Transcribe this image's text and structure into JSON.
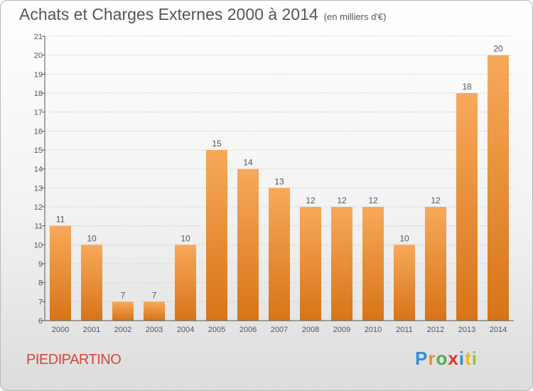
{
  "title": "Achats et Charges Externes 2000 à 2014",
  "unit": "(en milliers d'€)",
  "town": "PIEDIPARTINO",
  "logo": [
    "P",
    "r",
    "o",
    "x",
    "i",
    "t",
    "i"
  ],
  "colors": {
    "bar_light": "#f7a95a",
    "bar_dark": "#d77418",
    "axis": "#555555",
    "grid": "#cfcfcf",
    "title": "#555555",
    "town": "#d5473a"
  },
  "chart_data": {
    "type": "bar",
    "categories": [
      "2000",
      "2001",
      "2002",
      "2003",
      "2004",
      "2005",
      "2006",
      "2007",
      "2008",
      "2009",
      "2010",
      "2011",
      "2012",
      "2013",
      "2014"
    ],
    "values": [
      11,
      10,
      7,
      7,
      10,
      15,
      14,
      13,
      12,
      12,
      12,
      10,
      12,
      18,
      20
    ],
    "data_labels": [
      "11",
      "10",
      "7",
      "7",
      "10",
      "15",
      "14",
      "13",
      "12",
      "12",
      "12",
      "10",
      "12",
      "18",
      "20"
    ],
    "yticks": [
      6,
      7,
      8,
      9,
      10,
      11,
      12,
      13,
      14,
      15,
      16,
      17,
      18,
      19,
      20,
      21
    ],
    "ylim": [
      6,
      21
    ],
    "grid": true
  }
}
